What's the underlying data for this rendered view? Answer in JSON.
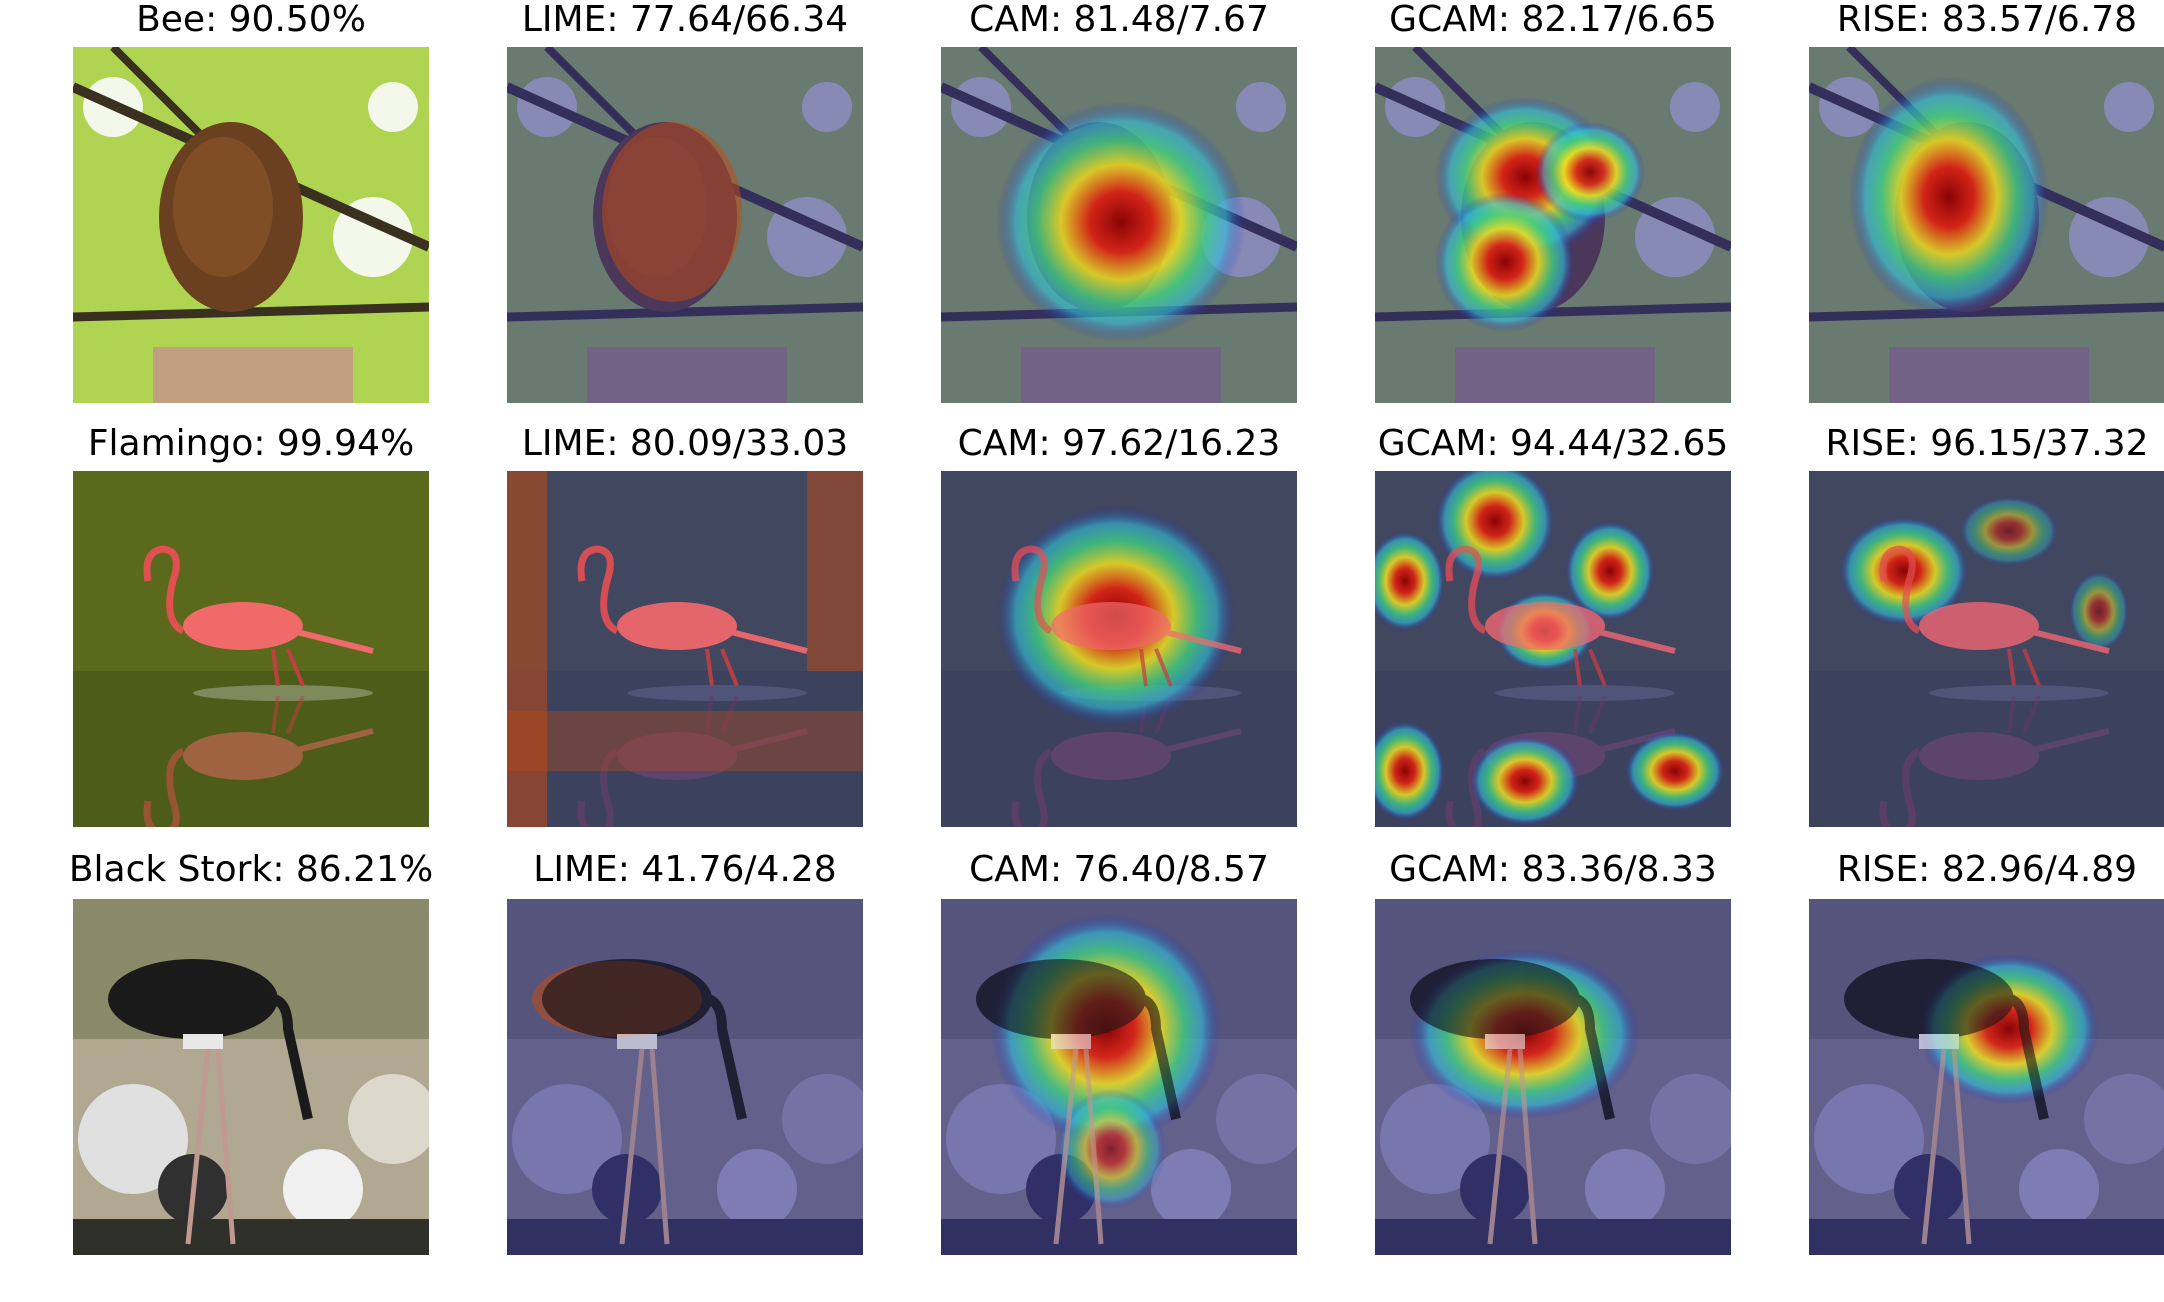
{
  "figure": {
    "rows": [
      {
        "key": "bee",
        "cells": [
          {
            "title": "Bee: 90.50%",
            "method": "original"
          },
          {
            "title": "LIME: 77.64/66.34",
            "method": "lime"
          },
          {
            "title": "CAM: 81.48/7.67",
            "method": "cam"
          },
          {
            "title": "GCAM: 82.17/6.65",
            "method": "gcam"
          },
          {
            "title": "RISE: 83.57/6.78",
            "method": "rise"
          }
        ]
      },
      {
        "key": "flamingo",
        "cells": [
          {
            "title": "Flamingo: 99.94%",
            "method": "original"
          },
          {
            "title": "LIME: 80.09/33.03",
            "method": "lime"
          },
          {
            "title": "CAM: 97.62/16.23",
            "method": "cam"
          },
          {
            "title": "GCAM: 94.44/32.65",
            "method": "gcam"
          },
          {
            "title": "RISE: 96.15/37.32",
            "method": "rise"
          }
        ]
      },
      {
        "key": "stork",
        "cells": [
          {
            "title": "Black Stork: 86.21%",
            "method": "original"
          },
          {
            "title": "LIME: 41.76/4.28",
            "method": "lime"
          },
          {
            "title": "CAM: 76.40/8.57",
            "method": "cam"
          },
          {
            "title": "GCAM: 83.36/8.33",
            "method": "gcam"
          },
          {
            "title": "RISE: 82.96/4.89",
            "method": "rise"
          }
        ]
      }
    ],
    "colors": {
      "heat_hot": "#8b0000",
      "heat_red": "#e02010",
      "heat_yellow": "#f0e020",
      "heat_green": "#40d080",
      "heat_cyan": "#30c0e0",
      "heat_blue": "#2020c0",
      "cold_overlay": "#30308a",
      "lime_segment": "#c24a10"
    }
  }
}
